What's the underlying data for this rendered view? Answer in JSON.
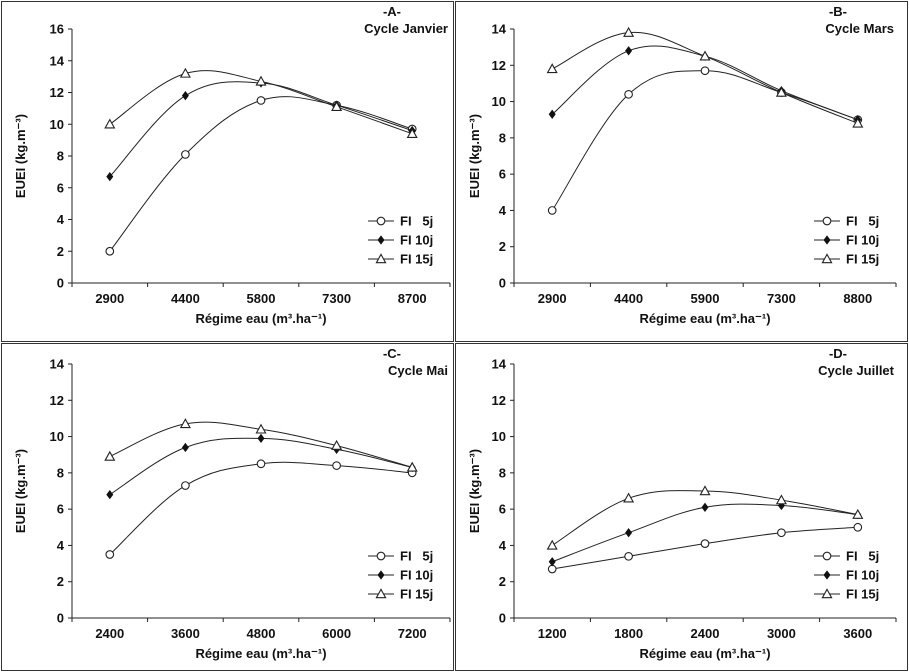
{
  "chart_data": [
    {
      "type": "line",
      "panel_label": "-A-",
      "title": "Cycle Janvier",
      "xlabel": "Régime eau (m³.ha⁻¹)",
      "ylabel": "EUEI (kg.m⁻³)",
      "categories": [
        "2900",
        "4400",
        "5800",
        "7300",
        "8700"
      ],
      "ylim": [
        0,
        16
      ],
      "yticks": [
        0,
        2,
        4,
        6,
        8,
        10,
        12,
        14,
        16
      ],
      "legend": "bottom-right",
      "series": [
        {
          "name": "FI   5j",
          "marker": "circle-open",
          "values": [
            2.0,
            8.1,
            11.5,
            11.2,
            9.7
          ]
        },
        {
          "name": "FI 10j",
          "marker": "diamond-filled",
          "values": [
            6.7,
            11.8,
            12.6,
            11.2,
            9.6
          ]
        },
        {
          "name": "FI 15j",
          "marker": "triangle-open",
          "values": [
            10.0,
            13.2,
            12.7,
            11.1,
            9.4
          ]
        }
      ]
    },
    {
      "type": "line",
      "panel_label": "-B-",
      "title": "Cycle Mars",
      "xlabel": "Régime eau (m³.ha⁻¹)",
      "ylabel": "EUEI (kg.m⁻³)",
      "categories": [
        "2900",
        "4400",
        "5900",
        "7300",
        "8800"
      ],
      "ylim": [
        0,
        14
      ],
      "yticks": [
        0,
        2,
        4,
        6,
        8,
        10,
        12,
        14
      ],
      "legend": "bottom-right",
      "series": [
        {
          "name": "FI   5j",
          "marker": "circle-open",
          "values": [
            4.0,
            10.4,
            11.7,
            10.5,
            9.0
          ]
        },
        {
          "name": "FI 10j",
          "marker": "diamond-filled",
          "values": [
            9.3,
            12.8,
            12.5,
            10.6,
            9.0
          ]
        },
        {
          "name": "FI 15j",
          "marker": "triangle-open",
          "values": [
            11.8,
            13.8,
            12.5,
            10.5,
            8.8
          ]
        }
      ]
    },
    {
      "type": "line",
      "panel_label": "-C-",
      "title": "Cycle Mai",
      "xlabel": "Régime eau (m³.ha⁻¹)",
      "ylabel": "EUEI (kg.m⁻³)",
      "categories": [
        "2400",
        "3600",
        "4800",
        "6000",
        "7200"
      ],
      "ylim": [
        0,
        14
      ],
      "yticks": [
        0,
        2,
        4,
        6,
        8,
        10,
        12,
        14
      ],
      "legend": "bottom-right",
      "series": [
        {
          "name": "FI   5j",
          "marker": "circle-open",
          "values": [
            3.5,
            7.3,
            8.5,
            8.4,
            8.0
          ]
        },
        {
          "name": "FI 10j",
          "marker": "diamond-filled",
          "values": [
            6.8,
            9.4,
            9.9,
            9.3,
            8.3
          ]
        },
        {
          "name": "FI 15j",
          "marker": "triangle-open",
          "values": [
            8.9,
            10.7,
            10.4,
            9.5,
            8.3
          ]
        }
      ]
    },
    {
      "type": "line",
      "panel_label": "-D-",
      "title": "Cycle Juillet",
      "xlabel": "Régime eau (m³.ha⁻¹)",
      "ylabel": "EUEI (kg.m⁻³)",
      "categories": [
        "1200",
        "1800",
        "2400",
        "3000",
        "3600"
      ],
      "ylim": [
        0,
        14
      ],
      "yticks": [
        0,
        2,
        4,
        6,
        8,
        10,
        12,
        14
      ],
      "legend": "bottom-right",
      "series": [
        {
          "name": "FI   5j",
          "marker": "circle-open",
          "values": [
            2.7,
            3.4,
            4.1,
            4.7,
            5.0
          ]
        },
        {
          "name": "FI 10j",
          "marker": "diamond-filled",
          "values": [
            3.1,
            4.7,
            6.1,
            6.2,
            5.7
          ]
        },
        {
          "name": "FI 15j",
          "marker": "triangle-open",
          "values": [
            4.0,
            6.6,
            7.0,
            6.5,
            5.7
          ]
        }
      ]
    }
  ]
}
